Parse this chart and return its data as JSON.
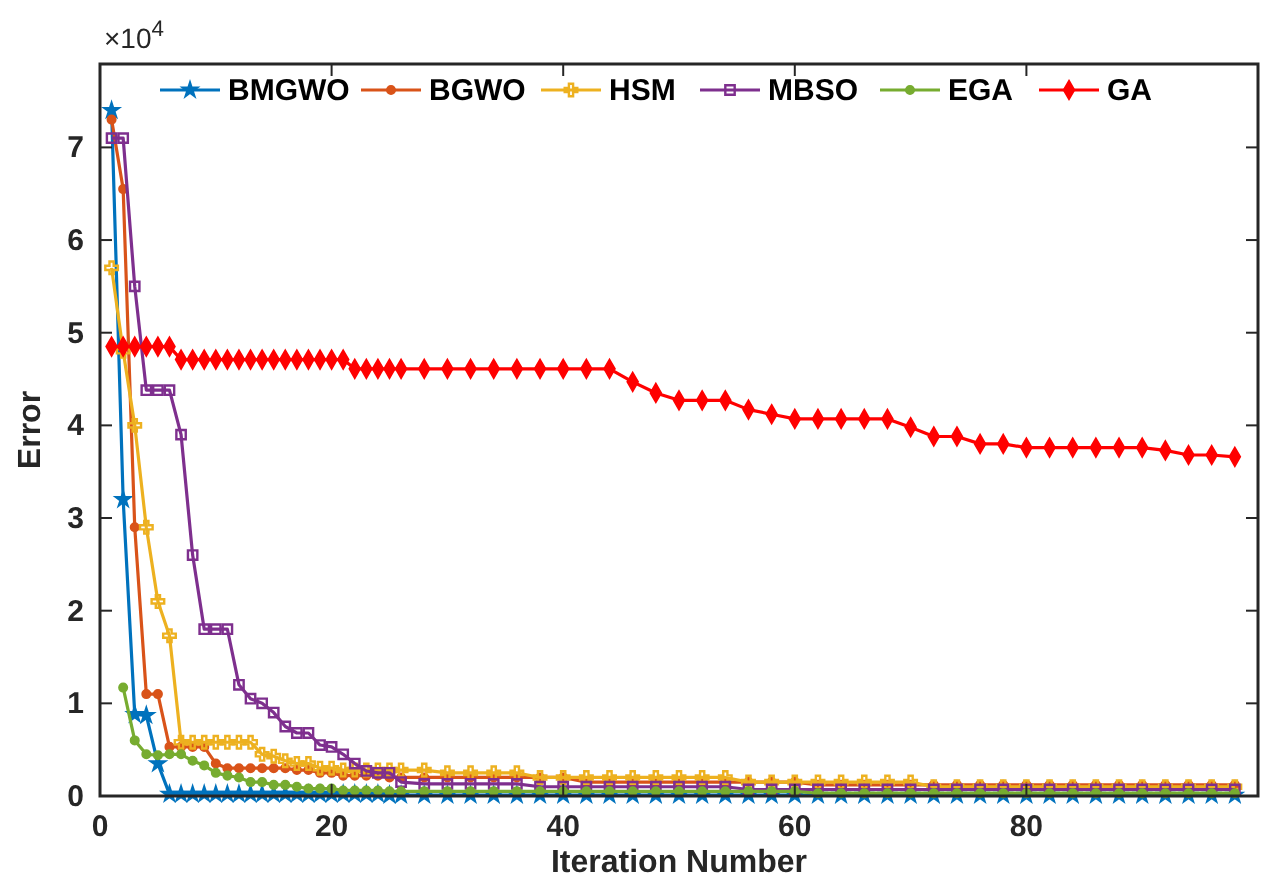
{
  "chart_data": {
    "type": "line",
    "xlabel": "Iteration Number",
    "ylabel": "Error",
    "annotations": [
      "×10$^{4}$"
    ],
    "x": [
      1,
      2,
      3,
      4,
      5,
      6,
      7,
      8,
      9,
      10,
      11,
      12,
      13,
      14,
      15,
      16,
      17,
      18,
      19,
      20,
      21,
      22,
      23,
      24,
      25,
      26,
      28,
      30,
      32,
      34,
      36,
      38,
      40,
      42,
      44,
      46,
      48,
      50,
      52,
      54,
      56,
      58,
      60,
      62,
      64,
      66,
      68,
      70,
      72,
      74,
      76,
      78,
      80,
      82,
      84,
      86,
      88,
      90,
      92,
      94,
      96,
      98
    ],
    "xlim": [
      0,
      100
    ],
    "xticks": [
      0,
      20,
      40,
      60,
      80
    ],
    "ylim": [
      0,
      7.9
    ],
    "yticks": [
      0,
      1,
      2,
      3,
      4,
      5,
      6,
      7
    ],
    "grid": false,
    "legend": "top",
    "series": [
      {
        "name": "BMGWO",
        "color": "#0072bd",
        "marker": "star",
        "values": [
          7.4,
          3.2,
          0.88,
          0.87,
          0.35,
          0.02,
          0.02,
          0.02,
          0.02,
          0.02,
          0.02,
          0.02,
          0.02,
          0.02,
          0.02,
          0.02,
          0.02,
          0.02,
          0.02,
          0.02,
          0.02,
          0.02,
          0.02,
          0.02,
          0.01,
          0.01,
          0.01,
          0.01,
          0.01,
          0.01,
          0.01,
          0.01,
          0.01,
          0.01,
          0.01,
          0.01,
          0.01,
          0.01,
          0.01,
          0.01,
          0.01,
          0.01,
          0.01,
          0.01,
          0.01,
          0.01,
          0.01,
          0.01,
          0.01,
          0.01,
          0.01,
          0.01,
          0.01,
          0.01,
          0.01,
          0.01,
          0.01,
          0.01,
          0.01,
          0.01,
          0.01,
          0.01
        ]
      },
      {
        "name": "BGWO",
        "color": "#d95319",
        "marker": "circle",
        "values": [
          7.3,
          6.55,
          2.9,
          1.1,
          1.1,
          0.53,
          0.53,
          0.53,
          0.53,
          0.35,
          0.3,
          0.3,
          0.3,
          0.3,
          0.3,
          0.3,
          0.28,
          0.28,
          0.25,
          0.25,
          0.22,
          0.22,
          0.22,
          0.22,
          0.2,
          0.2,
          0.2,
          0.2,
          0.2,
          0.2,
          0.2,
          0.2,
          0.2,
          0.15,
          0.15,
          0.15,
          0.15,
          0.15,
          0.15,
          0.15,
          0.15,
          0.15,
          0.15,
          0.12,
          0.12,
          0.12,
          0.12,
          0.12,
          0.12,
          0.12,
          0.12,
          0.12,
          0.12,
          0.12,
          0.12,
          0.12,
          0.12,
          0.12,
          0.12,
          0.12,
          0.12,
          0.12
        ]
      },
      {
        "name": "HSM",
        "color": "#edb120",
        "marker": "cross",
        "values": [
          5.7,
          4.8,
          4.0,
          2.9,
          2.1,
          1.73,
          0.58,
          0.58,
          0.58,
          0.58,
          0.58,
          0.58,
          0.58,
          0.45,
          0.43,
          0.38,
          0.35,
          0.35,
          0.3,
          0.3,
          0.28,
          0.28,
          0.28,
          0.28,
          0.28,
          0.28,
          0.28,
          0.25,
          0.25,
          0.25,
          0.25,
          0.2,
          0.2,
          0.2,
          0.2,
          0.2,
          0.2,
          0.2,
          0.2,
          0.2,
          0.15,
          0.15,
          0.15,
          0.15,
          0.15,
          0.15,
          0.15,
          0.15,
          0.1,
          0.1,
          0.1,
          0.1,
          0.1,
          0.1,
          0.1,
          0.1,
          0.1,
          0.1,
          0.1,
          0.1,
          0.1,
          0.1
        ]
      },
      {
        "name": "MBSO",
        "color": "#7e2f8e",
        "marker": "square",
        "values": [
          7.1,
          7.1,
          5.5,
          4.38,
          4.38,
          4.38,
          3.9,
          2.6,
          1.8,
          1.8,
          1.8,
          1.2,
          1.05,
          1.0,
          0.9,
          0.75,
          0.68,
          0.68,
          0.55,
          0.53,
          0.45,
          0.35,
          0.27,
          0.25,
          0.25,
          0.15,
          0.13,
          0.13,
          0.13,
          0.13,
          0.13,
          0.1,
          0.1,
          0.1,
          0.1,
          0.1,
          0.1,
          0.1,
          0.1,
          0.1,
          0.07,
          0.07,
          0.07,
          0.07,
          0.07,
          0.07,
          0.07,
          0.07,
          0.07,
          0.07,
          0.07,
          0.07,
          0.07,
          0.07,
          0.07,
          0.07,
          0.07,
          0.07,
          0.07,
          0.07,
          0.07,
          0.07
        ]
      },
      {
        "name": "EGA",
        "color": "#77ac30",
        "marker": "circle",
        "values": [
          null,
          1.17,
          0.6,
          0.45,
          0.44,
          0.45,
          0.45,
          0.38,
          0.33,
          0.25,
          0.22,
          0.2,
          0.15,
          0.15,
          0.12,
          0.12,
          0.1,
          0.08,
          0.08,
          0.08,
          0.06,
          0.06,
          0.06,
          0.06,
          0.05,
          0.05,
          0.05,
          0.05,
          0.05,
          0.05,
          0.05,
          0.05,
          0.05,
          0.05,
          0.05,
          0.05,
          0.05,
          0.05,
          0.05,
          0.05,
          0.05,
          0.05,
          0.05,
          0.03,
          0.03,
          0.03,
          0.03,
          0.03,
          0.03,
          0.03,
          0.03,
          0.03,
          0.03,
          0.03,
          0.03,
          0.03,
          0.03,
          0.03,
          0.03,
          0.03,
          0.03,
          0.03
        ]
      },
      {
        "name": "GA",
        "color": "#ff0000",
        "marker": "diamond",
        "values": [
          4.85,
          4.85,
          4.85,
          4.85,
          4.85,
          4.85,
          4.71,
          4.71,
          4.71,
          4.71,
          4.71,
          4.71,
          4.71,
          4.71,
          4.71,
          4.71,
          4.71,
          4.71,
          4.71,
          4.71,
          4.71,
          4.61,
          4.61,
          4.61,
          4.61,
          4.61,
          4.61,
          4.61,
          4.61,
          4.61,
          4.61,
          4.61,
          4.61,
          4.61,
          4.61,
          4.47,
          4.35,
          4.27,
          4.27,
          4.27,
          4.17,
          4.12,
          4.07,
          4.07,
          4.07,
          4.07,
          4.07,
          3.98,
          3.88,
          3.88,
          3.8,
          3.8,
          3.76,
          3.76,
          3.76,
          3.76,
          3.76,
          3.76,
          3.73,
          3.68,
          3.68,
          3.66
        ]
      }
    ]
  }
}
